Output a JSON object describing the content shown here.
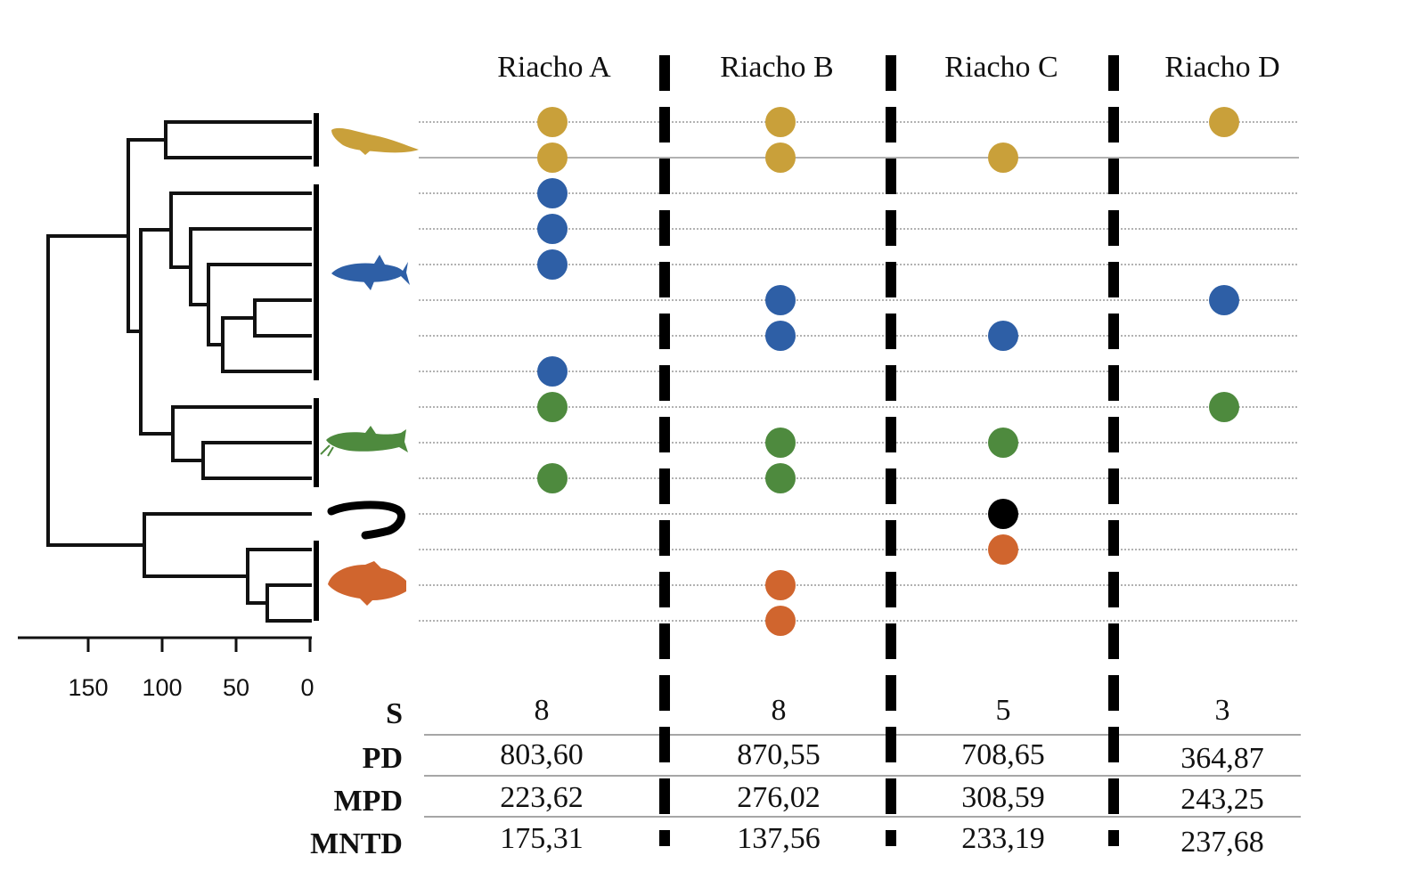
{
  "columns": [
    {
      "label": "Riacho A",
      "presence": [
        1,
        1,
        1,
        1,
        1,
        0,
        0,
        1,
        1,
        0,
        1,
        0,
        0,
        0,
        0
      ],
      "values": [
        "8",
        "803,60",
        "223,62",
        "175,31"
      ]
    },
    {
      "label": "Riacho B",
      "presence": [
        1,
        1,
        0,
        0,
        0,
        1,
        1,
        0,
        0,
        1,
        1,
        0,
        0,
        1,
        1
      ],
      "values": [
        "8",
        "870,55",
        "276,02",
        "137,56"
      ]
    },
    {
      "label": "Riacho C",
      "presence": [
        0,
        1,
        0,
        0,
        0,
        0,
        1,
        0,
        0,
        1,
        0,
        1,
        1,
        0,
        0
      ],
      "values": [
        "5",
        "708,65",
        "308,59",
        "233,19"
      ]
    },
    {
      "label": "Riacho D",
      "presence": [
        1,
        0,
        0,
        0,
        0,
        1,
        0,
        0,
        1,
        0,
        0,
        0,
        0,
        0,
        0
      ],
      "values": [
        "3",
        "364,87",
        "243,25",
        "237,68"
      ]
    }
  ],
  "taxa_groups": [
    {
      "name": "group-1",
      "icon": "eel-fish-icon",
      "color": "#C9A03A",
      "tips": [
        0,
        1
      ]
    },
    {
      "name": "group-2",
      "icon": "characin-fish-icon",
      "color": "#2E5FA6",
      "tips": [
        2,
        3,
        4,
        5,
        6,
        7
      ]
    },
    {
      "name": "group-3",
      "icon": "catfish-icon",
      "color": "#4E8A3E",
      "tips": [
        8,
        9,
        10
      ]
    },
    {
      "name": "group-4",
      "icon": "synbranchid-eel-icon",
      "color": "#000000",
      "tips": [
        11
      ]
    },
    {
      "name": "group-5",
      "icon": "cichlid-fish-icon",
      "color": "#D0652E",
      "tips": [
        12,
        13,
        14
      ]
    }
  ],
  "tip_groups": [
    0,
    0,
    1,
    1,
    1,
    1,
    1,
    1,
    2,
    2,
    2,
    3,
    4,
    4,
    4
  ],
  "axis": {
    "ticks": [
      "150",
      "100",
      "50",
      "0"
    ],
    "tick_values": [
      150,
      100,
      50,
      0
    ]
  },
  "metrics": [
    "S",
    "PD",
    "MPD",
    "MNTD"
  ],
  "colors": {
    "line": "#111111",
    "guide": "#999999",
    "divider": "#000000"
  }
}
